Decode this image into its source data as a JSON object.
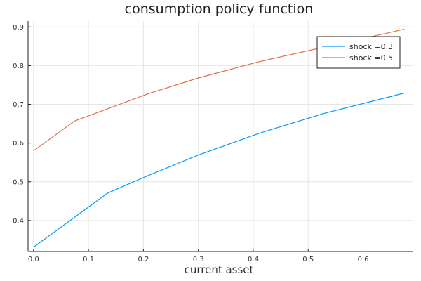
{
  "chart_data": {
    "type": "line",
    "title": "consumption policy function",
    "xlabel": "current asset",
    "ylabel": "",
    "xlim": [
      -0.01,
      0.69
    ],
    "ylim": [
      0.32,
      0.915
    ],
    "xticks": [
      0.0,
      0.1,
      0.2,
      0.3,
      0.4,
      0.5,
      0.6
    ],
    "xtick_labels": [
      "0.0",
      "0.1",
      "0.2",
      "0.3",
      "0.4",
      "0.5",
      "0.6"
    ],
    "yticks": [
      0.4,
      0.5,
      0.6,
      0.7,
      0.8,
      0.9
    ],
    "ytick_labels": [
      "0.4",
      "0.5",
      "0.6",
      "0.7",
      "0.8",
      "0.9"
    ],
    "grid": true,
    "legend_position": "top-right",
    "series": [
      {
        "name": "shock =0.3",
        "color": "#009AFA",
        "x": [
          0.0,
          0.135,
          0.21,
          0.3,
          0.41,
          0.53,
          0.675
        ],
        "y": [
          0.331,
          0.471,
          0.517,
          0.569,
          0.625,
          0.677,
          0.729
        ]
      },
      {
        "name": "shock =0.5",
        "color": "#E36F47",
        "x": [
          0.0,
          0.075,
          0.21,
          0.3,
          0.41,
          0.53,
          0.675
        ],
        "y": [
          0.58,
          0.657,
          0.728,
          0.768,
          0.81,
          0.848,
          0.894
        ]
      }
    ]
  }
}
